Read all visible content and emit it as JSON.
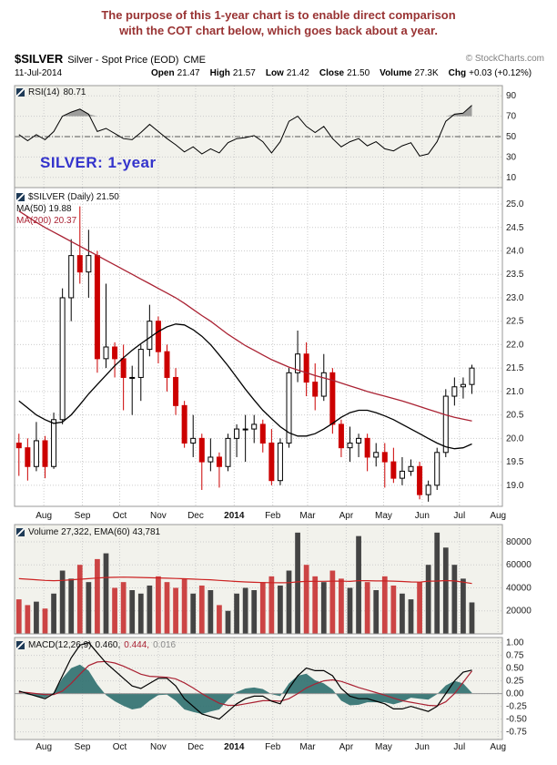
{
  "note": {
    "line1": "The purpose of this 1-year chart is to enable direct comparison",
    "line2": "with the COT chart below, which goes back about a year."
  },
  "header": {
    "symbol": "$SILVER",
    "description": "Silver - Spot Price (EOD)",
    "exchange": "CME",
    "copyright": "© StockCharts.com",
    "date": "11-Jul-2014",
    "quote": [
      {
        "label": "Open",
        "value": "21.47"
      },
      {
        "label": "High",
        "value": "21.57"
      },
      {
        "label": "Low",
        "value": "21.42"
      },
      {
        "label": "Close",
        "value": "21.50"
      },
      {
        "label": "Volume",
        "value": "27.3K"
      },
      {
        "label": "Chg",
        "value": "+0.03 (+0.12%)"
      }
    ]
  },
  "annotation": {
    "text": "SILVER: 1-year",
    "color": "#3333cc"
  },
  "legends": {
    "rsi": {
      "label": "RSI(14)",
      "value": "80.71"
    },
    "price": {
      "symbol_line": "$SILVER (Daily) 21.50",
      "ma50": "MA(50) 19.88",
      "ma200": "MA(200) 20.37"
    },
    "volume": {
      "text": "Volume 27,322, EMA(60) 43,781"
    },
    "macd": {
      "label": "MACD(12,26,9)",
      "v1": "0.460,",
      "v2": "0.444,",
      "v3": "0.016"
    }
  },
  "chart_data": {
    "type": "ohlc",
    "symbol": "$SILVER",
    "period": "12-Jul-2013 to 11-Jul-2014, daily chart sampled weekly (53 bars)",
    "slots": 56,
    "months": [
      [
        "Aug",
        2.86
      ],
      [
        "Sep",
        7.29
      ],
      [
        "Oct",
        11.57
      ],
      [
        "Nov",
        16.0
      ],
      [
        "Dec",
        20.29
      ],
      [
        "2014",
        24.71
      ],
      [
        "Feb",
        29.14
      ],
      [
        "Mar",
        33.14
      ],
      [
        "Apr",
        37.57
      ],
      [
        "May",
        41.86
      ],
      [
        "Jun",
        46.29
      ],
      [
        "Jul",
        50.57
      ],
      [
        "Aug",
        55.0
      ]
    ],
    "panels": {
      "rsi": {
        "label": "RSI(14)",
        "last": 80.71,
        "ylim": [
          0,
          100
        ],
        "overbought": 70,
        "midline": 50,
        "ticks": [
          [
            "90",
            90
          ],
          [
            "70",
            70
          ],
          [
            "50",
            50
          ],
          [
            "30",
            30
          ],
          [
            "10",
            10
          ]
        ],
        "values": [
          52,
          46,
          52,
          47,
          55,
          70,
          74,
          77,
          72,
          55,
          58,
          53,
          48,
          47,
          54,
          62,
          55,
          48,
          42,
          35,
          40,
          33,
          38,
          34,
          44,
          48,
          49,
          51,
          45,
          34,
          45,
          65,
          70,
          60,
          54,
          60,
          48,
          40,
          45,
          48,
          41,
          45,
          38,
          36,
          41,
          44,
          31,
          33,
          45,
          65,
          72,
          73,
          80.71
        ]
      },
      "price": {
        "last": 21.5,
        "ma50_last": 19.88,
        "ma200_last": 20.37,
        "ylim": [
          18.55,
          25.35
        ],
        "ticks": [
          [
            "25.0",
            25.0
          ],
          [
            "24.5",
            24.5
          ],
          [
            "24.0",
            24.0
          ],
          [
            "23.5",
            23.5
          ],
          [
            "23.0",
            23.0
          ],
          [
            "22.5",
            22.5
          ],
          [
            "22.0",
            22.0
          ],
          [
            "21.5",
            21.5
          ],
          [
            "21.0",
            21.0
          ],
          [
            "20.5",
            20.5
          ],
          [
            "20.0",
            20.0
          ],
          [
            "19.5",
            19.5
          ],
          [
            "19.0",
            19.0
          ]
        ],
        "ohlc": [
          [
            19.9,
            20.1,
            19.2,
            19.8
          ],
          [
            19.8,
            20.0,
            19.1,
            19.4
          ],
          [
            19.4,
            20.35,
            19.3,
            19.95
          ],
          [
            19.95,
            20.05,
            19.15,
            19.4
          ],
          [
            19.4,
            20.55,
            19.35,
            20.4
          ],
          [
            20.4,
            23.2,
            20.3,
            23.0
          ],
          [
            23.0,
            24.25,
            22.5,
            23.9
          ],
          [
            23.9,
            24.95,
            23.3,
            23.55
          ],
          [
            23.55,
            24.45,
            23.0,
            23.9
          ],
          [
            23.9,
            24.0,
            21.4,
            21.7
          ],
          [
            21.7,
            23.3,
            21.5,
            21.95
          ],
          [
            21.95,
            22.05,
            21.3,
            21.7
          ],
          [
            21.7,
            22.0,
            20.6,
            21.3
          ],
          [
            21.3,
            21.55,
            20.5,
            21.3
          ],
          [
            21.3,
            22.0,
            20.8,
            21.9
          ],
          [
            21.9,
            22.85,
            21.75,
            22.5
          ],
          [
            22.5,
            22.6,
            21.6,
            21.85
          ],
          [
            21.85,
            22.0,
            21.0,
            21.3
          ],
          [
            21.3,
            21.5,
            20.5,
            20.7
          ],
          [
            20.7,
            20.8,
            19.8,
            19.9
          ],
          [
            19.9,
            20.5,
            19.6,
            20.0
          ],
          [
            20.0,
            20.1,
            18.9,
            19.5
          ],
          [
            19.5,
            20.0,
            19.3,
            19.6
          ],
          [
            19.6,
            19.7,
            18.95,
            19.4
          ],
          [
            19.4,
            20.1,
            19.3,
            20.0
          ],
          [
            20.0,
            20.3,
            19.6,
            20.2
          ],
          [
            20.2,
            20.5,
            19.5,
            20.2
          ],
          [
            20.2,
            20.5,
            19.9,
            20.3
          ],
          [
            20.3,
            20.4,
            19.7,
            19.9
          ],
          [
            19.9,
            20.2,
            19.0,
            19.1
          ],
          [
            19.1,
            20.0,
            19.0,
            19.9
          ],
          [
            19.9,
            21.5,
            19.8,
            21.4
          ],
          [
            21.4,
            22.3,
            21.2,
            21.8
          ],
          [
            21.8,
            22.05,
            20.9,
            21.2
          ],
          [
            21.2,
            21.6,
            20.6,
            20.9
          ],
          [
            20.9,
            21.8,
            20.8,
            21.4
          ],
          [
            21.4,
            21.5,
            20.1,
            20.3
          ],
          [
            20.3,
            20.4,
            19.6,
            19.8
          ],
          [
            19.8,
            20.25,
            19.5,
            19.9
          ],
          [
            19.9,
            20.1,
            19.6,
            20.0
          ],
          [
            20.0,
            20.1,
            19.3,
            19.6
          ],
          [
            19.6,
            19.9,
            19.4,
            19.7
          ],
          [
            19.7,
            19.9,
            18.95,
            19.5
          ],
          [
            19.5,
            19.8,
            19.05,
            19.15
          ],
          [
            19.15,
            19.6,
            19.0,
            19.3
          ],
          [
            19.3,
            19.55,
            19.2,
            19.4
          ],
          [
            19.4,
            19.5,
            18.7,
            18.8
          ],
          [
            18.8,
            19.1,
            18.65,
            19.0
          ],
          [
            19.0,
            19.8,
            18.9,
            19.7
          ],
          [
            19.7,
            21.05,
            19.6,
            20.9
          ],
          [
            20.9,
            21.3,
            20.7,
            21.1
          ],
          [
            21.1,
            21.3,
            20.85,
            21.15
          ],
          [
            21.15,
            21.57,
            20.95,
            21.5
          ]
        ],
        "ma50": [
          20.8,
          20.65,
          20.5,
          20.4,
          20.32,
          20.35,
          20.5,
          20.72,
          20.95,
          21.15,
          21.35,
          21.55,
          21.72,
          21.88,
          22.02,
          22.15,
          22.28,
          22.38,
          22.44,
          22.42,
          22.32,
          22.18,
          22.0,
          21.78,
          21.55,
          21.3,
          21.05,
          20.82,
          20.6,
          20.42,
          20.25,
          20.12,
          20.05,
          20.05,
          20.1,
          20.2,
          20.32,
          20.45,
          20.55,
          20.6,
          20.6,
          20.55,
          20.48,
          20.4,
          20.3,
          20.2,
          20.1,
          20.0,
          19.9,
          19.82,
          19.78,
          19.8,
          19.88
        ],
        "ma200": [
          24.85,
          24.73,
          24.61,
          24.5,
          24.4,
          24.3,
          24.2,
          24.1,
          24.0,
          23.9,
          23.8,
          23.7,
          23.6,
          23.5,
          23.4,
          23.3,
          23.2,
          23.1,
          23.0,
          22.88,
          22.75,
          22.62,
          22.5,
          22.36,
          22.22,
          22.1,
          21.98,
          21.88,
          21.78,
          21.68,
          21.6,
          21.52,
          21.46,
          21.4,
          21.34,
          21.29,
          21.24,
          21.18,
          21.12,
          21.06,
          21.0,
          20.95,
          20.9,
          20.85,
          20.8,
          20.74,
          20.68,
          20.62,
          20.56,
          20.5,
          20.45,
          20.41,
          20.37
        ]
      },
      "volume": {
        "last": 27322,
        "ema60_last": 43781,
        "ylim": [
          0,
          95000
        ],
        "ticks": [
          [
            "80000",
            80000
          ],
          [
            "60000",
            60000
          ],
          [
            "40000",
            40000
          ],
          [
            "20000",
            20000
          ]
        ],
        "values": [
          30000,
          25000,
          28000,
          22000,
          35000,
          55000,
          48000,
          60000,
          45000,
          65000,
          70000,
          40000,
          45000,
          38000,
          35000,
          42000,
          50000,
          45000,
          40000,
          48000,
          35000,
          42000,
          38000,
          25000,
          20000,
          35000,
          40000,
          38000,
          45000,
          50000,
          42000,
          55000,
          88000,
          60000,
          50000,
          45000,
          55000,
          48000,
          40000,
          85000,
          45000,
          38000,
          50000,
          42000,
          35000,
          30000,
          45000,
          60000,
          88000,
          75000,
          60000,
          48000,
          27322
        ],
        "ema60": [
          48000,
          47500,
          47000,
          46500,
          46200,
          46500,
          47000,
          47500,
          48000,
          48500,
          49000,
          49200,
          49300,
          49200,
          49000,
          48800,
          48600,
          48400,
          48100,
          47900,
          47600,
          47300,
          47000,
          46500,
          46000,
          45500,
          45100,
          44800,
          44600,
          44500,
          44400,
          44500,
          45200,
          45600,
          45700,
          45700,
          45800,
          45800,
          45600,
          46200,
          46200,
          46000,
          46000,
          45800,
          45500,
          45100,
          45000,
          45800,
          45900,
          46300,
          46000,
          45000,
          43781
        ]
      },
      "macd": {
        "params": "12,26,9",
        "last_macd": 0.46,
        "last_signal": 0.444,
        "last_hist": 0.016,
        "ylim": [
          -0.9,
          1.1
        ],
        "ticks": [
          [
            "1.00",
            1.0
          ],
          [
            "0.75",
            0.75
          ],
          [
            "0.50",
            0.5
          ],
          [
            "0.25",
            0.25
          ],
          [
            "0.00",
            0.0
          ],
          [
            "-0.25",
            -0.25
          ],
          [
            "-0.50",
            -0.5
          ],
          [
            "-0.75",
            -0.75
          ]
        ],
        "macd": [
          0.05,
          0.0,
          -0.05,
          -0.1,
          0.0,
          0.35,
          0.7,
          0.95,
          1.0,
          0.8,
          0.6,
          0.45,
          0.3,
          0.15,
          0.1,
          0.2,
          0.3,
          0.3,
          0.15,
          -0.1,
          -0.25,
          -0.4,
          -0.45,
          -0.5,
          -0.35,
          -0.2,
          -0.1,
          -0.05,
          -0.05,
          -0.15,
          -0.2,
          0.1,
          0.35,
          0.5,
          0.45,
          0.45,
          0.35,
          0.1,
          -0.05,
          -0.1,
          -0.1,
          -0.15,
          -0.2,
          -0.3,
          -0.3,
          -0.25,
          -0.3,
          -0.35,
          -0.25,
          0.0,
          0.25,
          0.42,
          0.46
        ],
        "signal": [
          0.03,
          0.02,
          0.0,
          -0.02,
          -0.02,
          0.05,
          0.2,
          0.38,
          0.55,
          0.62,
          0.63,
          0.6,
          0.54,
          0.46,
          0.38,
          0.34,
          0.33,
          0.32,
          0.29,
          0.21,
          0.11,
          0.0,
          -0.1,
          -0.19,
          -0.23,
          -0.23,
          -0.2,
          -0.17,
          -0.14,
          -0.14,
          -0.15,
          -0.1,
          0.0,
          0.11,
          0.19,
          0.25,
          0.27,
          0.24,
          0.18,
          0.12,
          0.07,
          0.02,
          -0.03,
          -0.09,
          -0.14,
          -0.17,
          -0.2,
          -0.23,
          -0.24,
          -0.16,
          0.0,
          0.22,
          0.444
        ]
      }
    },
    "colors": {
      "up": "#000000",
      "down": "#cc0000",
      "ma50": "#000000",
      "ma200": "#aa2233",
      "vol_up": "#444444",
      "vol_down": "#cc4444",
      "ema": "#cc2222",
      "macd_line": "#000000",
      "signal_line": "#aa2233",
      "hist_fill": "#2e6f6f",
      "grid": "#cccccc",
      "border": "#999999",
      "panel_bg": "#f2f2ec",
      "price_bg": "#ffffff",
      "note_text": "#993333",
      "annotation_text": "#3333cc"
    }
  }
}
